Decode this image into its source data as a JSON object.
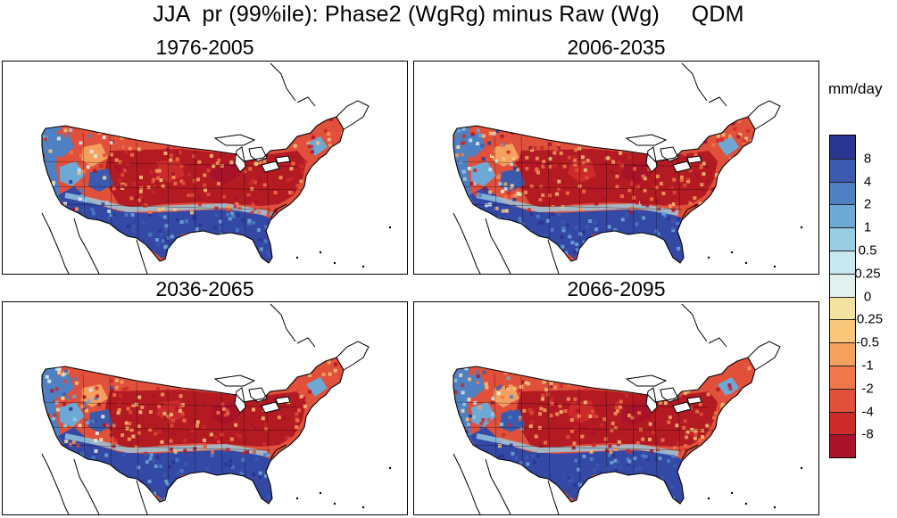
{
  "title": "JJA  pr (99%ile): Phase2 (WgRg) minus Raw (Wg)     QDM",
  "units": "mm/day",
  "panels": [
    {
      "label": "1976-2005"
    },
    {
      "label": "2006-2035"
    },
    {
      "label": "2036-2065"
    },
    {
      "label": "2066-2095"
    }
  ],
  "colorbar": {
    "colors": [
      "#2b3592",
      "#3b5aae",
      "#4e80c2",
      "#6ea9d6",
      "#98cde4",
      "#c8e8ef",
      "#e3f1ee",
      "#f4e2a2",
      "#f8c77a",
      "#f6a05f",
      "#ef774b",
      "#e0503b",
      "#cc2a2b",
      "#a8132a"
    ],
    "labels": [
      "8",
      "4",
      "2",
      "1",
      "0.5",
      "0.25",
      "0",
      "-0.25",
      "-0.5",
      "-1",
      "-2",
      "-4",
      "-8"
    ]
  },
  "colors": {
    "ocean": "#ffffff",
    "coast": "#000000",
    "dry_core": "#b41a22",
    "wet_south": "#3448a6"
  }
}
